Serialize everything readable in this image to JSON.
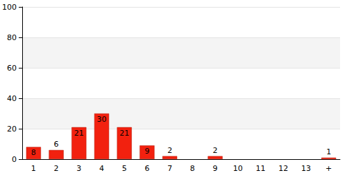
{
  "chart_data": {
    "type": "bar",
    "categories": [
      "1",
      "2",
      "3",
      "4",
      "5",
      "6",
      "7",
      "8",
      "9",
      "10",
      "11",
      "12",
      "13",
      "+"
    ],
    "values": [
      8,
      6,
      21,
      30,
      21,
      9,
      2,
      null,
      2,
      null,
      null,
      null,
      null,
      1
    ],
    "color": "#f2210f",
    "ylim": [
      0,
      100
    ],
    "yticks": [
      0,
      20,
      40,
      60,
      80,
      100
    ],
    "grid": true,
    "data_labels": true
  }
}
